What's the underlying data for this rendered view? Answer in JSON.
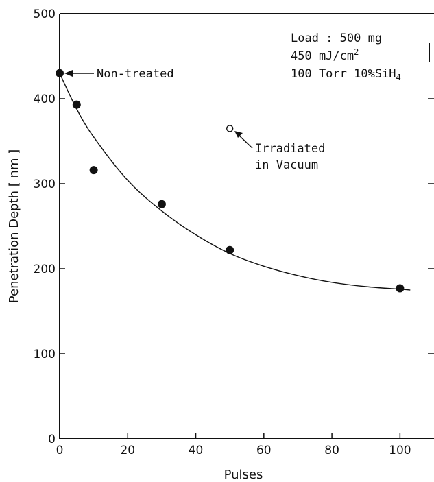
{
  "chart_data": {
    "type": "scatter",
    "title": "",
    "xlabel": "Pulses",
    "ylabel": "Penetration Depth [ nm ]",
    "xlim": [
      0,
      110
    ],
    "ylim": [
      0,
      500
    ],
    "x_ticks": [
      0,
      20,
      40,
      60,
      80,
      100
    ],
    "y_ticks": [
      0,
      100,
      200,
      300,
      400,
      500
    ],
    "x_tick_labels": [
      "0",
      "20",
      "40",
      "60",
      "80",
      "100"
    ],
    "y_tick_labels": [
      "0",
      "100",
      "200",
      "300",
      "400",
      "500"
    ],
    "grid": false,
    "series": [
      {
        "marker": "filled-circle",
        "x": [
          0,
          5,
          10,
          30,
          50,
          100
        ],
        "y": [
          430,
          393,
          316,
          276,
          222,
          177
        ]
      },
      {
        "marker": "open-circle",
        "x": [
          50
        ],
        "y": [
          365
        ]
      }
    ],
    "fit_curve": {
      "x": [
        0,
        5,
        10,
        20,
        30,
        40,
        50,
        60,
        70,
        80,
        90,
        100,
        103
      ],
      "y": [
        430,
        388,
        355,
        304,
        268,
        240,
        218,
        203,
        192,
        184,
        179,
        176,
        175
      ]
    },
    "conditions": [
      "Load : 500 mg",
      "450 mJ/cm",
      "100 Torr 10%SiH"
    ],
    "conditions_sup": [
      "",
      "2",
      ""
    ],
    "conditions_sub": [
      "",
      "",
      "4"
    ],
    "annotations": [
      {
        "text": "Non-treated"
      },
      {
        "lines": [
          "Irradiated",
          "in Vacuum"
        ]
      }
    ]
  }
}
